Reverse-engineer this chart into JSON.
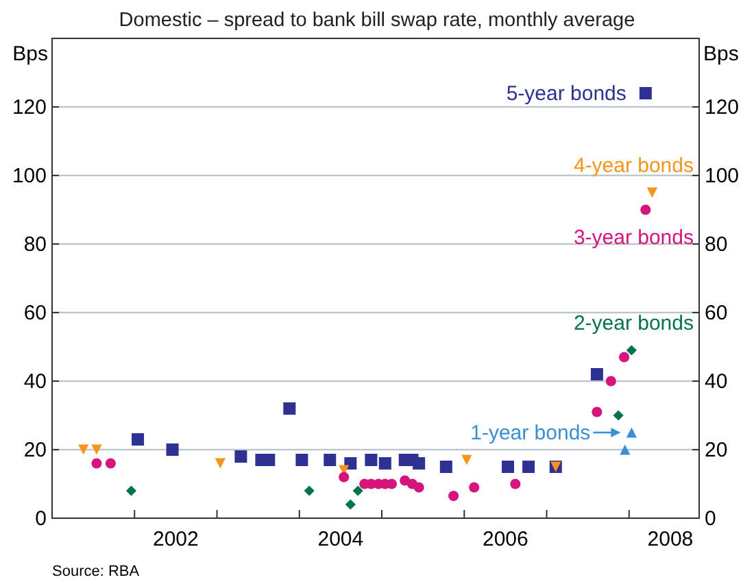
{
  "chart_data": {
    "type": "scatter",
    "subtitle": "Domestic – spread to bank bill swap rate, monthly average",
    "ylabel": "Bps",
    "y2label": "Bps",
    "xlim": [
      2001,
      2008.85
    ],
    "xticks": [
      {
        "value": 2002,
        "label": null
      },
      {
        "value": 2002.5,
        "label": "2002"
      },
      {
        "value": 2003,
        "label": null
      },
      {
        "value": 2004,
        "label": null
      },
      {
        "value": 2004.5,
        "label": "2004"
      },
      {
        "value": 2005,
        "label": null
      },
      {
        "value": 2006,
        "label": null
      },
      {
        "value": 2006.5,
        "label": "2006"
      },
      {
        "value": 2007,
        "label": null
      },
      {
        "value": 2008,
        "label": null
      },
      {
        "value": 2008.5,
        "label": "2008"
      }
    ],
    "ylim": [
      0,
      140
    ],
    "yticks": [
      0,
      20,
      40,
      60,
      80,
      100,
      120
    ],
    "y2lim": [
      0,
      140
    ],
    "y2ticks": [
      0,
      20,
      40,
      60,
      80,
      100,
      120
    ],
    "grid": "y",
    "series": [
      {
        "name": "5-year bonds",
        "color": "#2e3192",
        "marker": "square",
        "x": [
          2002.04,
          2002.46,
          2003.29,
          2003.54,
          2003.63,
          2003.88,
          2004.03,
          2004.37,
          2004.62,
          2004.87,
          2005.04,
          2005.28,
          2005.37,
          2005.45,
          2005.78,
          2006.53,
          2006.78,
          2007.11,
          2007.61,
          2008.2
        ],
        "values": [
          23,
          20,
          18,
          17,
          17,
          32,
          17,
          17,
          16,
          17,
          16,
          17,
          17,
          16,
          15,
          15,
          15,
          15,
          42,
          124
        ]
      },
      {
        "name": "4-year bonds",
        "color": "#f7941d",
        "marker": "triangle-down",
        "x": [
          2001.38,
          2001.54,
          2003.04,
          2004.54,
          2006.03,
          2007.11,
          2008.28
        ],
        "values": [
          20,
          20,
          16,
          14,
          17,
          15,
          95
        ]
      },
      {
        "name": "3-year bonds",
        "color": "#d6147e",
        "marker": "circle",
        "x": [
          2001.54,
          2001.71,
          2004.54,
          2004.79,
          2004.87,
          2004.96,
          2005.04,
          2005.12,
          2005.28,
          2005.37,
          2005.45,
          2005.87,
          2006.12,
          2006.62,
          2007.61,
          2007.78,
          2007.94,
          2008.2
        ],
        "values": [
          16,
          16,
          12,
          10,
          10,
          10,
          10,
          10,
          11,
          10,
          9,
          6.5,
          9,
          10,
          31,
          40,
          47,
          90
        ]
      },
      {
        "name": "2-year bonds",
        "color": "#00744a",
        "marker": "diamond",
        "x": [
          2001.96,
          2004.12,
          2004.62,
          2004.71,
          2007.87,
          2008.03
        ],
        "values": [
          8,
          8,
          4,
          8,
          30,
          49
        ]
      },
      {
        "name": "1-year bonds",
        "color": "#3b8fd6",
        "marker": "triangle",
        "x": [
          2007.95,
          2008.03
        ],
        "values": [
          20,
          25
        ]
      }
    ],
    "annotations": [
      "Source: RBA"
    ]
  }
}
